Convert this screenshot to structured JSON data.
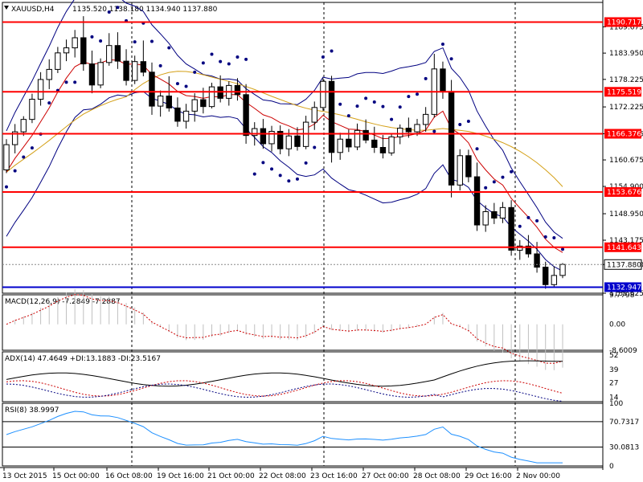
{
  "header": {
    "symbol": "XAUUSD,H4",
    "ohlc": "1135.520 1138.180 1134.940 1137.880"
  },
  "colors": {
    "frame": "#000000",
    "hline_red": "#ff0000",
    "hline_blue": "#0000cc",
    "bb": "#000080",
    "ema_fast": "#cc0000",
    "ma_slow": "#d4a017",
    "psar": "#000080",
    "macd": "#c0c0c0",
    "macd_signal": "#cc0000",
    "adx": "#000000",
    "di_plus": "#cc0000",
    "di_minus": "#000080",
    "rsi": "#1e90ff"
  },
  "chart_data": [
    {
      "type": "candlestick",
      "title": "XAUUSD,H4",
      "ylim": [
        1131.625,
        1195.0
      ],
      "y_ticks": [
        "1189.675",
        "1183.950",
        "1178.225",
        "1172.225",
        "1166.376",
        "1160.675",
        "1154.900",
        "1148.950",
        "1143.175",
        "1137.880",
        "1131.625"
      ],
      "levels": [
        {
          "value": 1190.717,
          "label": "1190.717",
          "color": "red"
        },
        {
          "value": 1175.519,
          "label": "1175.519",
          "color": "red"
        },
        {
          "value": 1166.376,
          "label": "1166.376",
          "color": "red"
        },
        {
          "value": 1153.676,
          "label": "1153.676",
          "color": "red"
        },
        {
          "value": 1141.643,
          "label": "1141.643",
          "color": "red"
        },
        {
          "value": 1132.947,
          "label": "1132.947",
          "color": "blue"
        }
      ],
      "current_price": "1137.880",
      "candles": [
        [
          1158.5,
          1165.2,
          1157.8,
          1164.0
        ],
        [
          1164.0,
          1168.5,
          1162.1,
          1166.8
        ],
        [
          1166.8,
          1170.2,
          1165.9,
          1169.5
        ],
        [
          1169.5,
          1175.1,
          1168.7,
          1173.9
        ],
        [
          1173.9,
          1179.8,
          1172.5,
          1178.2
        ],
        [
          1178.2,
          1182.6,
          1176.1,
          1180.4
        ],
        [
          1180.4,
          1185.3,
          1179.6,
          1184.0
        ],
        [
          1184.0,
          1186.9,
          1182.2,
          1185.1
        ],
        [
          1185.1,
          1189.0,
          1183.0,
          1187.3
        ],
        [
          1187.3,
          1192.0,
          1180.1,
          1181.6
        ],
        [
          1181.6,
          1184.5,
          1175.2,
          1177.0
        ],
        [
          1177.0,
          1182.8,
          1176.3,
          1181.9
        ],
        [
          1181.9,
          1188.3,
          1181.2,
          1185.6
        ],
        [
          1185.6,
          1188.5,
          1180.5,
          1182.2
        ],
        [
          1182.2,
          1184.8,
          1176.9,
          1178.0
        ],
        [
          1178.0,
          1183.4,
          1177.2,
          1182.1
        ],
        [
          1182.1,
          1186.7,
          1178.9,
          1179.8
        ],
        [
          1179.8,
          1181.9,
          1170.5,
          1172.4
        ],
        [
          1172.4,
          1175.8,
          1170.1,
          1174.6
        ],
        [
          1174.6,
          1178.9,
          1171.2,
          1172.0
        ],
        [
          1172.0,
          1174.3,
          1167.9,
          1169.1
        ],
        [
          1169.1,
          1172.9,
          1167.5,
          1171.3
        ],
        [
          1171.3,
          1175.2,
          1169.0,
          1173.8
        ],
        [
          1173.8,
          1176.4,
          1170.8,
          1172.3
        ],
        [
          1172.3,
          1177.5,
          1171.9,
          1176.6
        ],
        [
          1176.6,
          1179.1,
          1173.2,
          1174.1
        ],
        [
          1174.1,
          1177.8,
          1172.5,
          1176.9
        ],
        [
          1176.9,
          1178.5,
          1173.6,
          1174.9
        ],
        [
          1174.9,
          1177.2,
          1164.2,
          1166.0
        ],
        [
          1166.0,
          1168.9,
          1163.8,
          1167.5
        ],
        [
          1167.5,
          1169.6,
          1163.1,
          1164.2
        ],
        [
          1164.2,
          1168.1,
          1162.5,
          1166.9
        ],
        [
          1166.9,
          1168.2,
          1161.9,
          1163.1
        ],
        [
          1163.1,
          1167.4,
          1161.5,
          1165.9
        ],
        [
          1165.9,
          1167.8,
          1162.7,
          1163.6
        ],
        [
          1163.6,
          1170.3,
          1163.0,
          1168.9
        ],
        [
          1168.9,
          1173.4,
          1167.2,
          1172.1
        ],
        [
          1172.1,
          1178.5,
          1171.4,
          1177.8
        ],
        [
          1177.8,
          1179.0,
          1160.1,
          1162.3
        ],
        [
          1162.3,
          1166.6,
          1160.7,
          1165.2
        ],
        [
          1165.2,
          1167.3,
          1162.4,
          1163.5
        ],
        [
          1163.5,
          1168.6,
          1162.8,
          1167.1
        ],
        [
          1167.1,
          1169.5,
          1164.3,
          1165.0
        ],
        [
          1165.0,
          1167.9,
          1162.2,
          1163.4
        ],
        [
          1163.4,
          1166.1,
          1161.0,
          1162.2
        ],
        [
          1162.2,
          1166.5,
          1161.6,
          1165.7
        ],
        [
          1165.7,
          1168.4,
          1164.1,
          1167.6
        ],
        [
          1167.6,
          1169.9,
          1165.5,
          1166.8
        ],
        [
          1166.8,
          1169.6,
          1165.9,
          1168.4
        ],
        [
          1168.4,
          1172.2,
          1166.8,
          1170.6
        ],
        [
          1170.6,
          1183.8,
          1169.9,
          1180.5
        ],
        [
          1180.5,
          1182.1,
          1174.0,
          1175.6
        ],
        [
          1175.6,
          1178.1,
          1152.5,
          1155.2
        ],
        [
          1155.2,
          1163.0,
          1154.0,
          1161.6
        ],
        [
          1161.6,
          1162.9,
          1155.8,
          1157.0
        ],
        [
          1157.0,
          1160.1,
          1145.2,
          1146.5
        ],
        [
          1146.5,
          1150.8,
          1145.0,
          1149.4
        ],
        [
          1149.4,
          1151.3,
          1146.7,
          1148.0
        ],
        [
          1148.0,
          1151.5,
          1146.9,
          1150.3
        ],
        [
          1150.3,
          1151.9,
          1139.8,
          1141.0
        ],
        [
          1141.0,
          1143.2,
          1138.9,
          1141.9
        ],
        [
          1141.9,
          1144.3,
          1139.4,
          1140.2
        ],
        [
          1140.2,
          1142.8,
          1136.1,
          1137.3
        ],
        [
          1137.3,
          1138.5,
          1132.6,
          1133.5
        ],
        [
          1133.5,
          1137.5,
          1132.9,
          1135.5
        ],
        [
          1135.5,
          1138.2,
          1134.9,
          1137.9
        ]
      ],
      "ema_fast": [
        1158,
        1161,
        1163.5,
        1166,
        1169,
        1172,
        1175.5,
        1178.5,
        1181,
        1182,
        1181.5,
        1181.8,
        1182.5,
        1182.4,
        1181.5,
        1181.6,
        1181.3,
        1179.3,
        1178.3,
        1177.2,
        1175.6,
        1174.7,
        1174.5,
        1174.1,
        1174.5,
        1174.4,
        1174.9,
        1174.9,
        1173.2,
        1171.9,
        1170.5,
        1169.9,
        1168.8,
        1168.1,
        1167.2,
        1167.5,
        1168.5,
        1170.4,
        1169.0,
        1168.2,
        1167.4,
        1167.3,
        1166.8,
        1166.1,
        1165.3,
        1165.4,
        1165.8,
        1166.0,
        1166.4,
        1167.2,
        1170.0,
        1171.3,
        1167.5,
        1166.3,
        1164.4,
        1160.8,
        1158.5,
        1156.5,
        1155.2,
        1152.3,
        1150.2,
        1148.2,
        1146.0,
        1143.4,
        1141.6,
        1140.5
      ]
    },
    {
      "type": "macd",
      "title": "MACD(12,26,9) -7.2849 -7.2887",
      "y_ticks": [
        "9.7798",
        "0.00",
        "-8.6009"
      ],
      "ylim": [
        -8.6009,
        9.7798
      ]
    },
    {
      "type": "adx",
      "title": "ADX(14) 47.4649 +DI:13.1883 -DI:23.5167",
      "y_ticks": [
        "52",
        "39",
        "27",
        "14"
      ],
      "ylim": [
        10,
        55
      ]
    },
    {
      "type": "rsi",
      "title": "RSI(8) 38.9997",
      "y_ticks": [
        "100",
        "70.7317",
        "30.0813",
        "0"
      ],
      "ylim": [
        0,
        100
      ]
    }
  ],
  "x_labels": [
    "13 Oct 2015",
    "15 Oct 00:00",
    "16 Oct 08:00",
    "19 Oct 16:00",
    "21 Oct 00:00",
    "22 Oct 08:00",
    "23 Oct 16:00",
    "27 Oct 00:00",
    "28 Oct 08:00",
    "29 Oct 16:00",
    "2 Nov 00:00"
  ]
}
